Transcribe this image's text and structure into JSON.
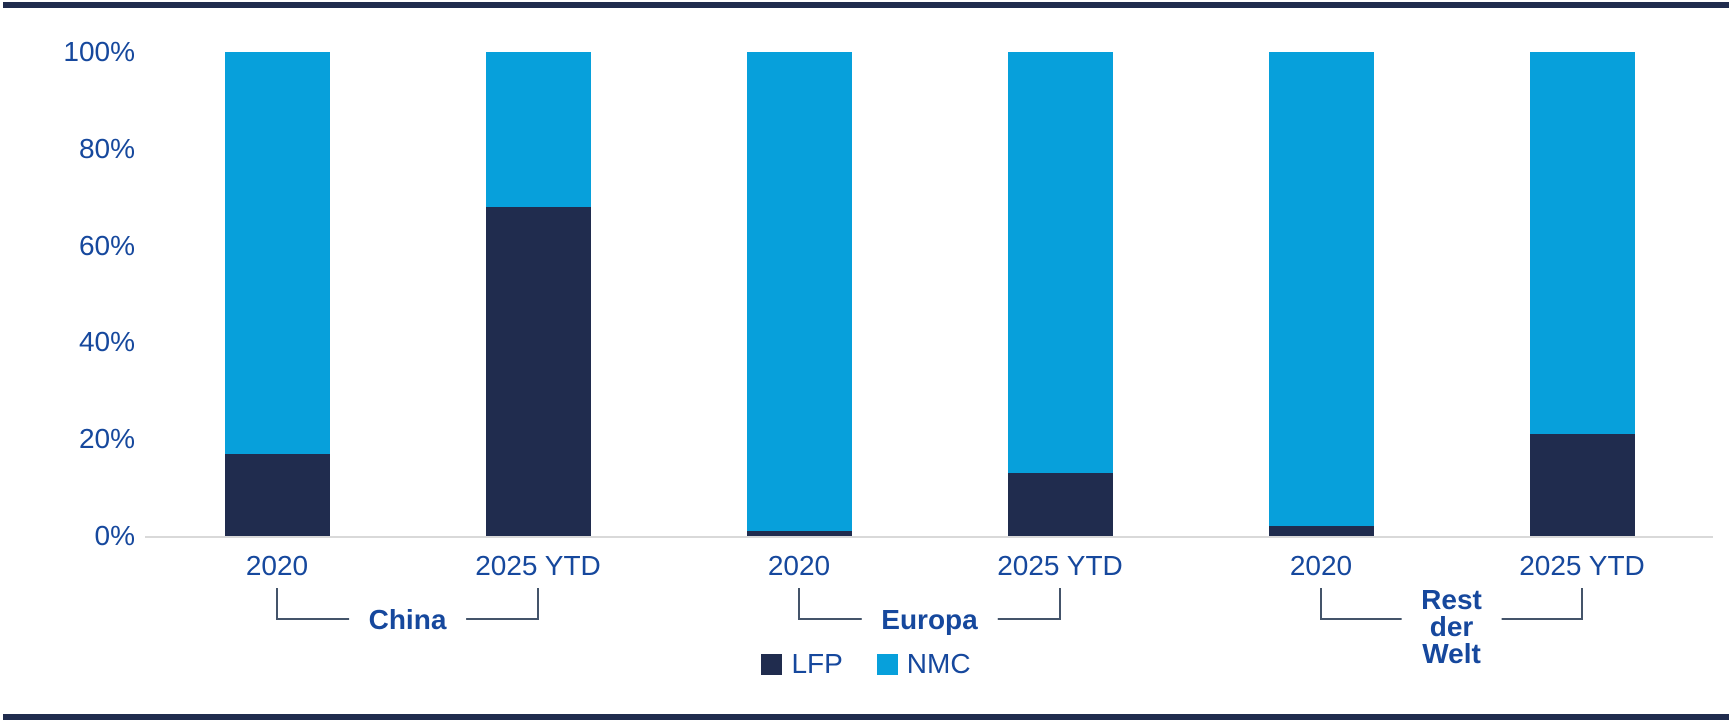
{
  "colors": {
    "lfp_navy": "#202C4E",
    "nmc_blue": "#07A0DB",
    "text_blue": "#16489D",
    "bracket_line": "#44546A",
    "axis_gray": "#D9D9D9",
    "border_navy": "#202C4E",
    "background": "#FFFFFF"
  },
  "chart_data": {
    "type": "bar",
    "stacked": true,
    "unit": "%",
    "title": "",
    "xlabel": "",
    "ylabel": "",
    "ylim": [
      0,
      100
    ],
    "grid": false,
    "legend_position": "bottom-center",
    "y_ticks": [
      "100%",
      "80%",
      "60%",
      "40%",
      "20%",
      "0%"
    ],
    "y_tick_values": [
      100,
      80,
      60,
      40,
      20,
      0
    ],
    "categories": [
      "2020",
      "2025 YTD",
      "2020",
      "2025 YTD",
      "2020",
      "2025 YTD"
    ],
    "groups": [
      {
        "label": "China",
        "label_lines": [
          "China"
        ],
        "bar_indexes": [
          0,
          1
        ]
      },
      {
        "label": "Europa",
        "label_lines": [
          "Europa"
        ],
        "bar_indexes": [
          2,
          3
        ]
      },
      {
        "label": "Rest der Welt",
        "label_lines": [
          "Rest",
          "der",
          "Welt"
        ],
        "bar_indexes": [
          4,
          5
        ]
      }
    ],
    "series": [
      {
        "name": "LFP",
        "color": "#202C4E",
        "values": [
          17,
          68,
          1,
          13,
          2,
          21
        ]
      },
      {
        "name": "NMC",
        "color": "#07A0DB",
        "values": [
          83,
          32,
          99,
          87,
          98,
          79
        ]
      }
    ]
  },
  "legend": {
    "items": [
      {
        "label": "LFP",
        "color": "#202C4E"
      },
      {
        "label": "NMC",
        "color": "#07A0DB"
      }
    ]
  }
}
